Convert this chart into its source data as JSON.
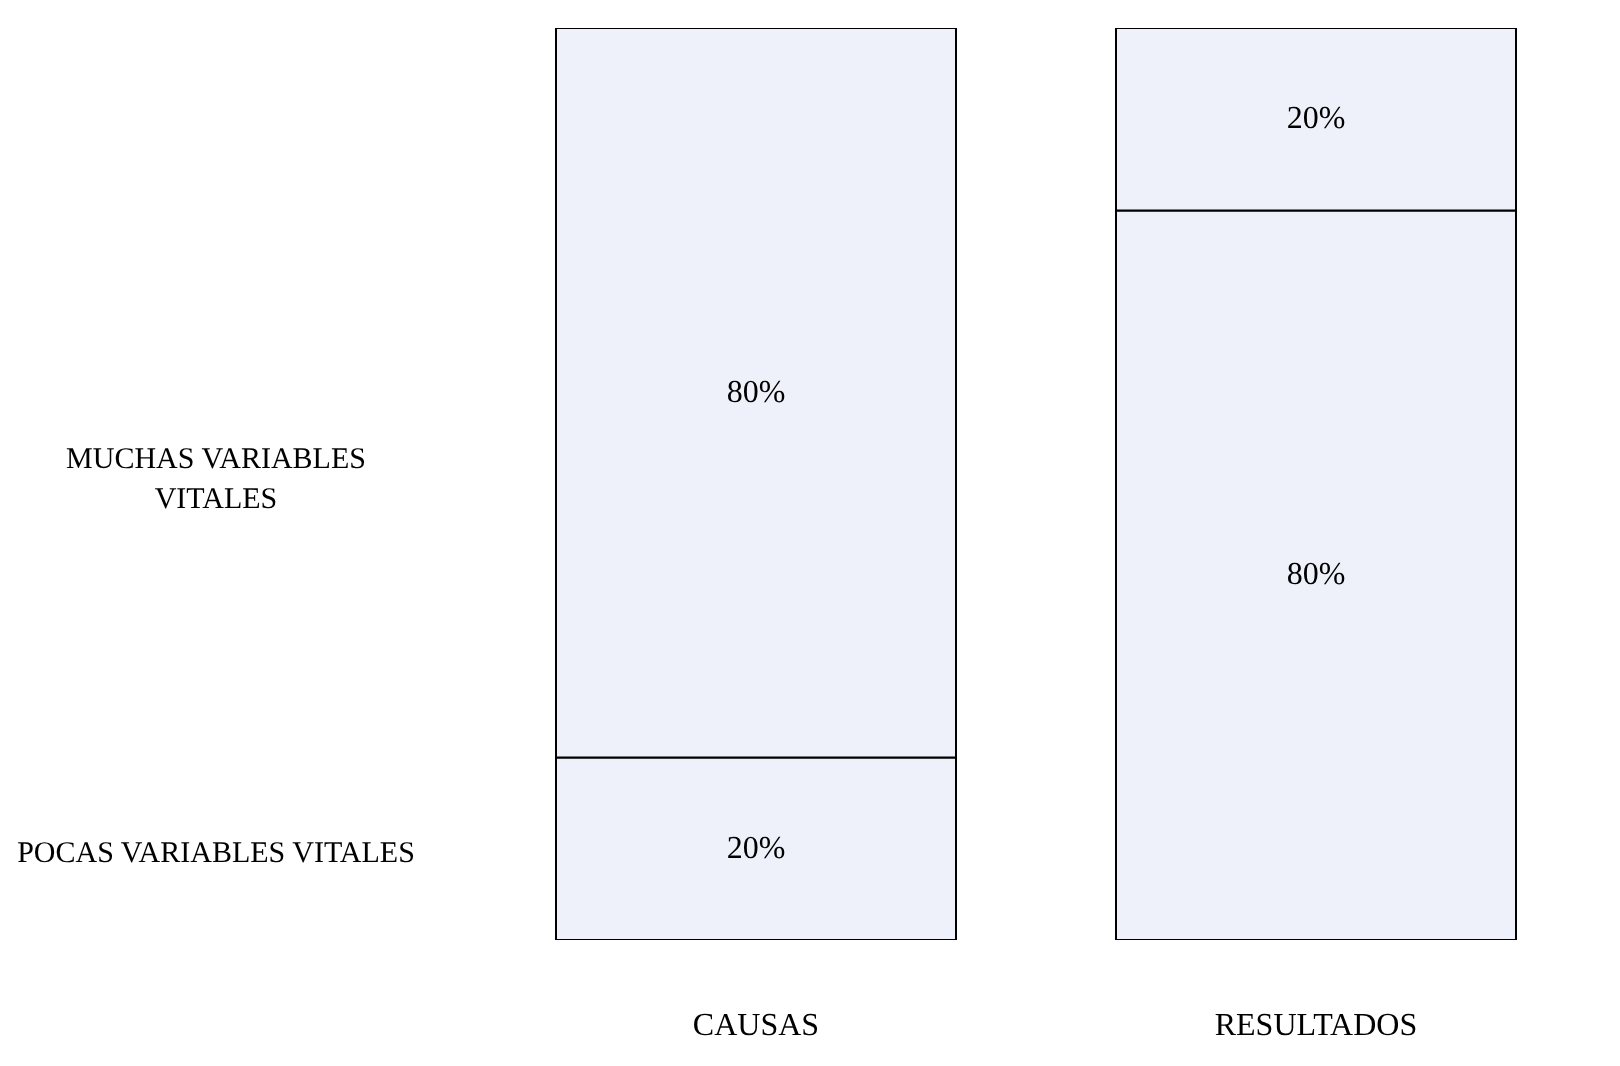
{
  "chart_data": {
    "type": "bar",
    "stacked": true,
    "categories": [
      "CAUSAS",
      "RESULTADOS"
    ],
    "series": [
      {
        "color": "#eef1f9",
        "values": [
          20,
          80
        ],
        "value_labels": [
          "20%",
          "80%"
        ]
      },
      {
        "color": "#eef1f9",
        "values": [
          80,
          20
        ],
        "value_labels": [
          "80%",
          "20%"
        ]
      }
    ],
    "tick_labels": "x",
    "annotations": [
      "MUCHAS VARIABLES VITALES",
      "POCAS VARIABLES VITALES"
    ]
  }
}
